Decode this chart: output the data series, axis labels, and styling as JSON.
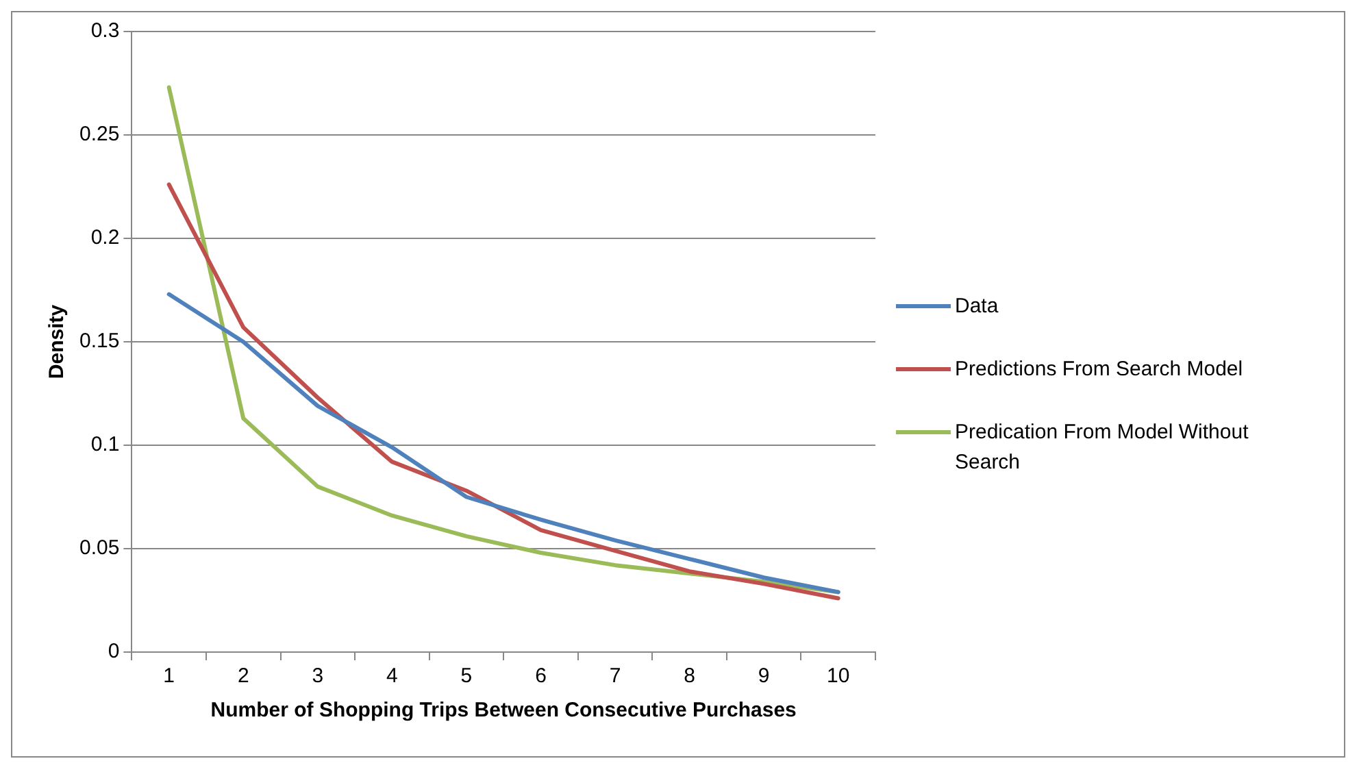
{
  "chart_data": {
    "type": "line",
    "xlabel": "Number of Shopping Trips Between Consecutive Purchases",
    "ylabel": "Density",
    "categories": [
      "1",
      "2",
      "3",
      "4",
      "5",
      "6",
      "7",
      "8",
      "9",
      "10"
    ],
    "series": [
      {
        "name": "Data",
        "color": "#4f81bd",
        "values": [
          0.173,
          0.15,
          0.119,
          0.099,
          0.075,
          0.064,
          0.054,
          0.045,
          0.036,
          0.029
        ]
      },
      {
        "name": "Predictions From Search Model",
        "color": "#c0504d",
        "values": [
          0.226,
          0.157,
          0.123,
          0.092,
          0.078,
          0.059,
          0.049,
          0.039,
          0.033,
          0.026
        ]
      },
      {
        "name": "Predication From Model Without Search",
        "color": "#9bbb59",
        "values": [
          0.273,
          0.113,
          0.08,
          0.066,
          0.056,
          0.048,
          0.042,
          0.038,
          0.034,
          0.029
        ]
      }
    ],
    "ylim": [
      0,
      0.3
    ],
    "yticks": [
      0,
      0.05,
      0.1,
      0.15,
      0.2,
      0.25,
      0.3
    ],
    "grid": "y",
    "legend": "right",
    "marker": "none",
    "line_style": "solid"
  }
}
